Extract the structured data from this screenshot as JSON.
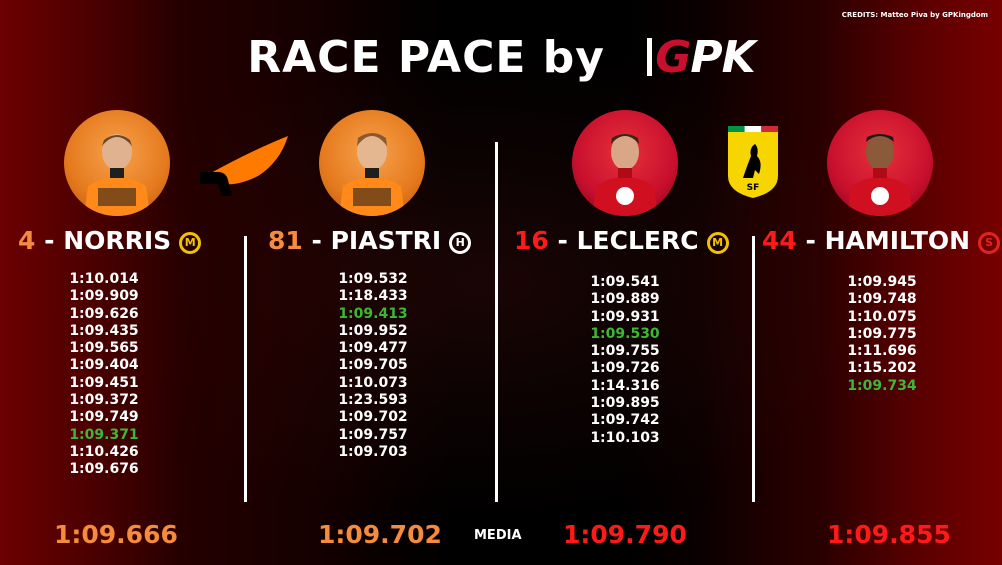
{
  "credits": "CREDITS: Matteo Piva by GPKingdom",
  "title": {
    "text": "RACE PACE by",
    "brand_g": "G",
    "brand_pk": "PK"
  },
  "media_label": "MEDIA",
  "colors": {
    "mclaren": "#f58b3c",
    "ferrari": "#ff1a1a",
    "best_lap": "#3db833"
  },
  "drivers": [
    {
      "number": "4",
      "name": "NORRIS",
      "tyre": "M",
      "tyre_type": "medium",
      "laps": [
        "1:10.014",
        "1:09.909",
        "1:09.626",
        "1:09.435",
        "1:09.565",
        "1:09.404",
        "1:09.451",
        "1:09.372",
        "1:09.749",
        "1:09.371",
        "1:10.426",
        "1:09.676"
      ],
      "best_index": 9,
      "average": "1:09.666"
    },
    {
      "number": "81",
      "name": "PIASTRI",
      "tyre": "H",
      "tyre_type": "hard",
      "laps": [
        "1:09.532",
        "1:18.433",
        "1:09.413",
        "1:09.952",
        "1:09.477",
        "1:09.705",
        "1:10.073",
        "1:23.593",
        "1:09.702",
        "1:09.757",
        "1:09.703"
      ],
      "best_index": 2,
      "average": "1:09.702"
    },
    {
      "number": "16",
      "name": "LECLERC",
      "tyre": "M",
      "tyre_type": "medium",
      "laps": [
        "1:09.541",
        "1:09.889",
        "1:09.931",
        "1:09.530",
        "1:09.755",
        "1:09.726",
        "1:14.316",
        "1:09.895",
        "1:09.742",
        "1:10.103"
      ],
      "best_index": 3,
      "average": "1:09.790"
    },
    {
      "number": "44",
      "name": "HAMILTON",
      "tyre": "S",
      "tyre_type": "soft",
      "laps": [
        "1:09.945",
        "1:09.748",
        "1:10.075",
        "1:09.775",
        "1:11.696",
        "1:15.202",
        "1:09.734"
      ],
      "best_index": 6,
      "average": "1:09.855"
    }
  ]
}
